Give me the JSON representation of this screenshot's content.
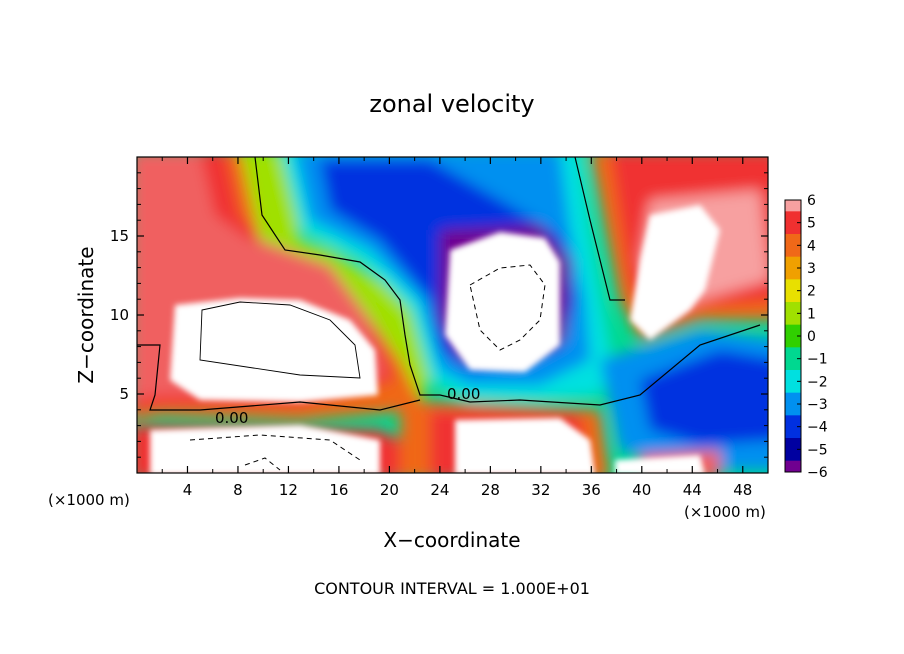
{
  "chart_data": {
    "type": "heatmap",
    "title": "zonal velocity",
    "xlabel": "X−coordinate",
    "ylabel": "Z−coordinate",
    "x_unit_label": "(×1000 m)",
    "y_unit_label": "(×1000 m)",
    "xlim": [
      0,
      50
    ],
    "ylim": [
      0,
      20
    ],
    "x_ticks": [
      4,
      8,
      12,
      16,
      20,
      24,
      28,
      32,
      36,
      40,
      44,
      48
    ],
    "y_ticks": [
      5,
      10,
      15
    ],
    "colorbar": {
      "range": [
        -6,
        6
      ],
      "tick_labels": [
        "6",
        "5",
        "4",
        "3",
        "2",
        "1",
        "0",
        "−1",
        "−2",
        "−3",
        "−4",
        "−5",
        "−6"
      ],
      "colors": [
        "#f7a0a0",
        "#f03030",
        "#f06818",
        "#f0a000",
        "#e8e000",
        "#a0e000",
        "#30d000",
        "#00d890",
        "#00e0e0",
        "#0090f0",
        "#0030e0",
        "#0000a0",
        "#700090"
      ]
    },
    "contour_labels": [
      "0.00",
      "0.00"
    ],
    "contour_interval_text": "CONTOUR INTERVAL = 1.000E+01",
    "grid": false
  }
}
